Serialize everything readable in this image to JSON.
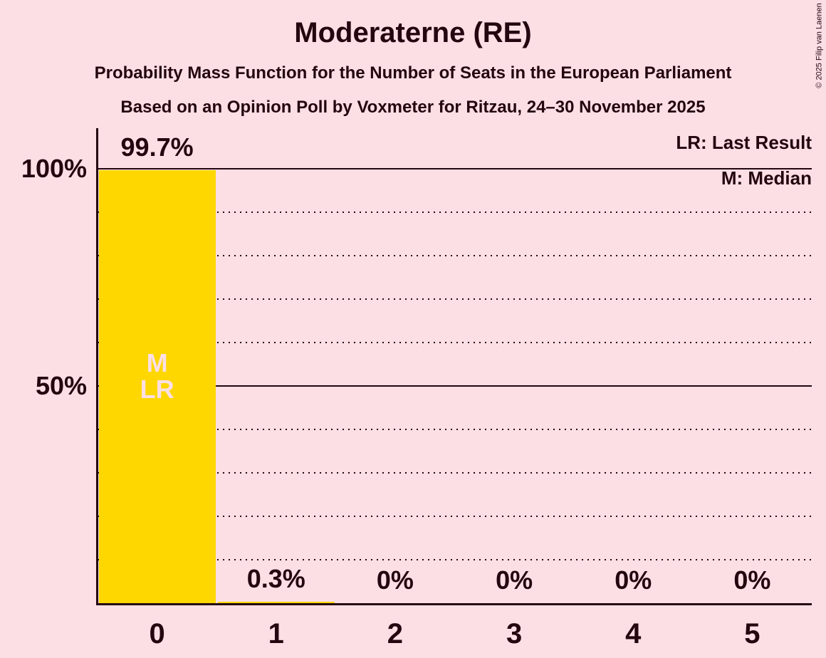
{
  "copyright": "© 2025 Filip van Laenen",
  "chart_data": {
    "type": "bar",
    "title": "Moderaterne (RE)",
    "subtitle": "Probability Mass Function for the Number of Seats in the European Parliament",
    "source_line": "Based on an Opinion Poll by Voxmeter for Ritzau, 24–30 November 2025",
    "xlabel": "",
    "ylabel": "",
    "categories": [
      "0",
      "1",
      "2",
      "3",
      "4",
      "5"
    ],
    "values": [
      99.7,
      0.3,
      0,
      0,
      0,
      0
    ],
    "value_labels": [
      "99.7%",
      "0.3%",
      "0%",
      "0%",
      "0%",
      "0%"
    ],
    "ylim": [
      0,
      100
    ],
    "yticks": [
      100,
      50
    ],
    "ytick_labels": [
      "100%",
      "50%"
    ],
    "solid_gridlines": [
      100,
      50
    ],
    "dotted_gridlines": [
      90,
      80,
      70,
      60,
      40,
      30,
      20,
      10
    ],
    "legend": [
      {
        "abbr": "LR",
        "label": "LR: Last Result"
      },
      {
        "abbr": "M",
        "label": "M: Median"
      }
    ],
    "bar_annotations": {
      "category": "0",
      "lines": [
        "M",
        "LR"
      ]
    },
    "colors": {
      "background": "#FBDFE5",
      "bar": "#FFD700",
      "text": "#23060F",
      "bar_annotation_text": "#FBDFE5"
    }
  }
}
